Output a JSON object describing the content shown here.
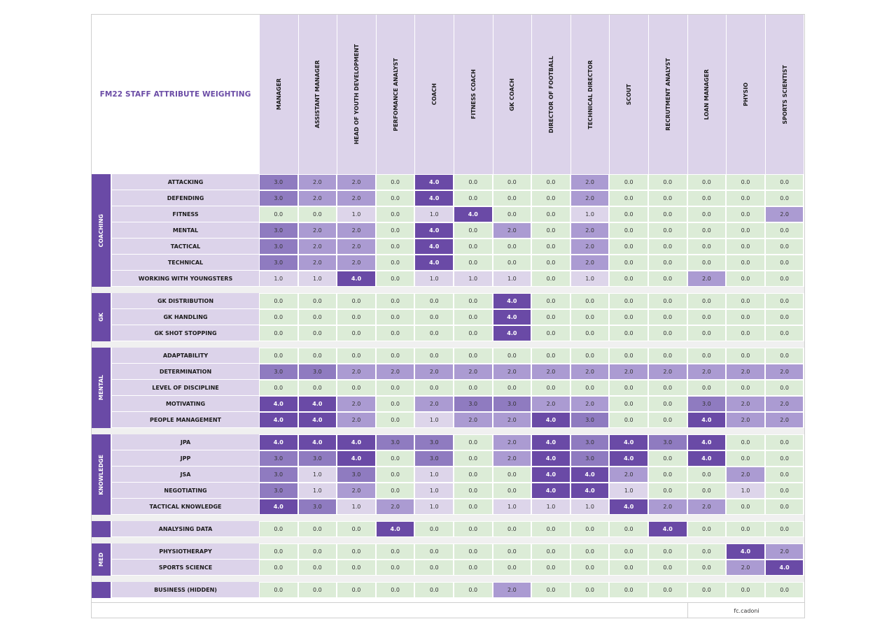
{
  "title": "FM22 STAFF ATTRIBUTE WEIGHTING",
  "credit": "fc.cadoni",
  "roles": [
    "MANAGER",
    "ASSISTANT MANAGER",
    "HEAD OF YOUTH DEVELOPMENT",
    "PERFOMANCE ANALYST",
    "COACH",
    "FITNESS COACH",
    "GK COACH",
    "DIRECTOR OF FOOTBALL",
    "TECHNICAL DIRECTOR",
    "SCOUT",
    "RECRUTMENT ANALYST",
    "LOAN MANAGER",
    "PHYSIO",
    "SPORTS SCIENTIST"
  ],
  "groups": [
    {
      "name": "COACHING",
      "rows": [
        {
          "label": "ATTACKING",
          "values": [
            "3.0",
            "2.0",
            "2.0",
            "0.0",
            "4.0",
            "0.0",
            "0.0",
            "0.0",
            "2.0",
            "0.0",
            "0.0",
            "0.0",
            "0.0",
            "0.0"
          ]
        },
        {
          "label": "DEFENDING",
          "values": [
            "3.0",
            "2.0",
            "2.0",
            "0.0",
            "4.0",
            "0.0",
            "0.0",
            "0.0",
            "2.0",
            "0.0",
            "0.0",
            "0.0",
            "0.0",
            "0.0"
          ]
        },
        {
          "label": "FITNESS",
          "values": [
            "0.0",
            "0.0",
            "1.0",
            "0.0",
            "1.0",
            "4.0",
            "0.0",
            "0.0",
            "1.0",
            "0.0",
            "0.0",
            "0.0",
            "0.0",
            "2.0"
          ]
        },
        {
          "label": "MENTAL",
          "values": [
            "3.0",
            "2.0",
            "2.0",
            "0.0",
            "4.0",
            "0.0",
            "2.0",
            "0.0",
            "2.0",
            "0.0",
            "0.0",
            "0.0",
            "0.0",
            "0.0"
          ]
        },
        {
          "label": "TACTICAL",
          "values": [
            "3.0",
            "2.0",
            "2.0",
            "0.0",
            "4.0",
            "0.0",
            "0.0",
            "0.0",
            "2.0",
            "0.0",
            "0.0",
            "0.0",
            "0.0",
            "0.0"
          ]
        },
        {
          "label": "TECHNICAL",
          "values": [
            "3.0",
            "2.0",
            "2.0",
            "0.0",
            "4.0",
            "0.0",
            "0.0",
            "0.0",
            "2.0",
            "0.0",
            "0.0",
            "0.0",
            "0.0",
            "0.0"
          ]
        },
        {
          "label": "WORKING WITH YOUNGSTERS",
          "values": [
            "1.0",
            "1.0",
            "4.0",
            "0.0",
            "1.0",
            "1.0",
            "1.0",
            "0.0",
            "1.0",
            "0.0",
            "0.0",
            "2.0",
            "0.0",
            "0.0"
          ]
        }
      ]
    },
    {
      "name": "GK",
      "rows": [
        {
          "label": "GK DISTRIBUTION",
          "values": [
            "0.0",
            "0.0",
            "0.0",
            "0.0",
            "0.0",
            "0.0",
            "4.0",
            "0.0",
            "0.0",
            "0.0",
            "0.0",
            "0.0",
            "0.0",
            "0.0"
          ]
        },
        {
          "label": "GK HANDLING",
          "values": [
            "0.0",
            "0.0",
            "0.0",
            "0.0",
            "0.0",
            "0.0",
            "4.0",
            "0.0",
            "0.0",
            "0.0",
            "0.0",
            "0.0",
            "0.0",
            "0.0"
          ]
        },
        {
          "label": "GK SHOT STOPPING",
          "values": [
            "0.0",
            "0.0",
            "0.0",
            "0.0",
            "0.0",
            "0.0",
            "4.0",
            "0.0",
            "0.0",
            "0.0",
            "0.0",
            "0.0",
            "0.0",
            "0.0"
          ]
        }
      ]
    },
    {
      "name": "MENTAL",
      "rows": [
        {
          "label": "ADAPTABILITY",
          "values": [
            "0.0",
            "0.0",
            "0.0",
            "0.0",
            "0.0",
            "0.0",
            "0.0",
            "0.0",
            "0.0",
            "0.0",
            "0.0",
            "0.0",
            "0.0",
            "0.0"
          ]
        },
        {
          "label": "DETERMINATION",
          "values": [
            "3.0",
            "3.0",
            "2.0",
            "2.0",
            "2.0",
            "2.0",
            "2.0",
            "2.0",
            "2.0",
            "2.0",
            "2.0",
            "2.0",
            "2.0",
            "2.0"
          ]
        },
        {
          "label": "LEVEL OF DISCIPLINE",
          "values": [
            "0.0",
            "0.0",
            "0.0",
            "0.0",
            "0.0",
            "0.0",
            "0.0",
            "0.0",
            "0.0",
            "0.0",
            "0.0",
            "0.0",
            "0.0",
            "0.0"
          ]
        },
        {
          "label": "MOTIVATING",
          "values": [
            "4.0",
            "4.0",
            "2.0",
            "0.0",
            "2.0",
            "3.0",
            "3.0",
            "2.0",
            "2.0",
            "0.0",
            "0.0",
            "3.0",
            "2.0",
            "2.0"
          ]
        },
        {
          "label": "PEOPLE MANAGEMENT",
          "values": [
            "4.0",
            "4.0",
            "2.0",
            "0.0",
            "1.0",
            "2.0",
            "2.0",
            "4.0",
            "3.0",
            "0.0",
            "0.0",
            "4.0",
            "2.0",
            "2.0"
          ]
        }
      ]
    },
    {
      "name": "KNOWLEDGE",
      "rows": [
        {
          "label": "JPA",
          "values": [
            "4.0",
            "4.0",
            "4.0",
            "3.0",
            "3.0",
            "0.0",
            "2.0",
            "4.0",
            "3.0",
            "4.0",
            "3.0",
            "4.0",
            "0.0",
            "0.0"
          ]
        },
        {
          "label": "JPP",
          "values": [
            "3.0",
            "3.0",
            "4.0",
            "0.0",
            "3.0",
            "0.0",
            "2.0",
            "4.0",
            "3.0",
            "4.0",
            "0.0",
            "4.0",
            "0.0",
            "0.0"
          ]
        },
        {
          "label": "JSA",
          "values": [
            "3.0",
            "1.0",
            "3.0",
            "0.0",
            "1.0",
            "0.0",
            "0.0",
            "4.0",
            "4.0",
            "2.0",
            "0.0",
            "0.0",
            "2.0",
            "0.0"
          ]
        },
        {
          "label": "NEGOTIATING",
          "values": [
            "3.0",
            "1.0",
            "2.0",
            "0.0",
            "1.0",
            "0.0",
            "0.0",
            "4.0",
            "4.0",
            "1.0",
            "0.0",
            "0.0",
            "1.0",
            "0.0"
          ]
        },
        {
          "label": "TACTICAL KNOWLEDGE",
          "values": [
            "4.0",
            "3.0",
            "1.0",
            "2.0",
            "1.0",
            "0.0",
            "1.0",
            "1.0",
            "1.0",
            "4.0",
            "2.0",
            "2.0",
            "0.0",
            "0.0"
          ]
        }
      ]
    },
    {
      "name": "",
      "rows": [
        {
          "label": "ANALYSING DATA",
          "values": [
            "0.0",
            "0.0",
            "0.0",
            "4.0",
            "0.0",
            "0.0",
            "0.0",
            "0.0",
            "0.0",
            "0.0",
            "4.0",
            "0.0",
            "0.0",
            "0.0"
          ]
        }
      ]
    },
    {
      "name": "MED",
      "rows": [
        {
          "label": "PHYSIOTHERAPY",
          "values": [
            "0.0",
            "0.0",
            "0.0",
            "0.0",
            "0.0",
            "0.0",
            "0.0",
            "0.0",
            "0.0",
            "0.0",
            "0.0",
            "0.0",
            "4.0",
            "2.0"
          ]
        },
        {
          "label": "SPORTS SCIENCE",
          "values": [
            "0.0",
            "0.0",
            "0.0",
            "0.0",
            "0.0",
            "0.0",
            "0.0",
            "0.0",
            "0.0",
            "0.0",
            "0.0",
            "0.0",
            "2.0",
            "4.0"
          ]
        }
      ]
    },
    {
      "name": "",
      "rows": [
        {
          "label": "BUSINESS (HIDDEN)",
          "values": [
            "0.0",
            "0.0",
            "0.0",
            "0.0",
            "0.0",
            "0.0",
            "2.0",
            "0.0",
            "0.0",
            "0.0",
            "0.0",
            "0.0",
            "0.0",
            "0.0"
          ]
        }
      ]
    }
  ]
}
